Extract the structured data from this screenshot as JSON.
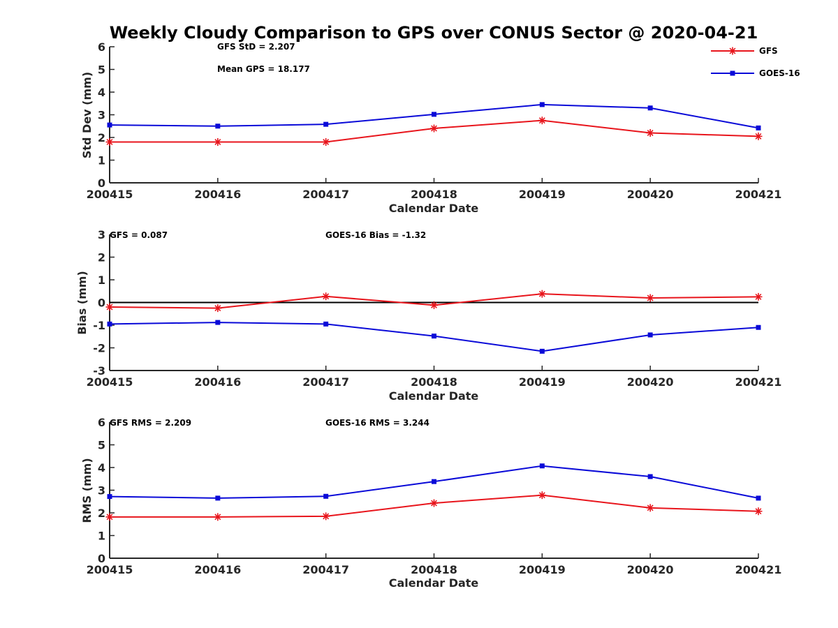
{
  "figure": {
    "title": "Weekly Cloudy Comparison to GPS over CONUS Sector @ 2020-04-21"
  },
  "legend": {
    "position": "top-right",
    "entries": [
      {
        "name": "GFS",
        "color": "#e8151c",
        "marker": "asterisk"
      },
      {
        "name": "GOES-16",
        "color": "#0a0ad8",
        "marker": "square"
      }
    ]
  },
  "chart_data": [
    {
      "type": "line",
      "xlabel": "Calendar Date",
      "ylabel": "Std Dev (mm)",
      "ylim": [
        0,
        6
      ],
      "yticks": [
        0,
        1,
        2,
        3,
        4,
        5,
        6
      ],
      "categories": [
        "200415",
        "200416",
        "200417",
        "200418",
        "200419",
        "200420",
        "200421"
      ],
      "series": [
        {
          "name": "GFS",
          "color": "#e8151c",
          "marker": "asterisk",
          "values": [
            1.8,
            1.8,
            1.8,
            2.4,
            2.75,
            2.2,
            2.05
          ]
        },
        {
          "name": "GOES-16",
          "color": "#0a0ad8",
          "marker": "square",
          "values": [
            2.55,
            2.5,
            2.58,
            3.02,
            3.45,
            3.3,
            2.42
          ]
        }
      ],
      "annotations": [
        "GFS StD = 2.207",
        "Mean GPS = 18.177"
      ],
      "zero_line": false
    },
    {
      "type": "line",
      "xlabel": "Calendar Date",
      "ylabel": "Bias (mm)",
      "ylim": [
        -3,
        3
      ],
      "yticks": [
        -3,
        -2,
        -1,
        0,
        1,
        2,
        3
      ],
      "categories": [
        "200415",
        "200416",
        "200417",
        "200418",
        "200419",
        "200420",
        "200421"
      ],
      "series": [
        {
          "name": "GFS",
          "color": "#e8151c",
          "marker": "asterisk",
          "values": [
            -0.2,
            -0.25,
            0.27,
            -0.12,
            0.38,
            0.2,
            0.25
          ]
        },
        {
          "name": "GOES-16",
          "color": "#0a0ad8",
          "marker": "square",
          "values": [
            -0.95,
            -0.88,
            -0.95,
            -1.48,
            -2.15,
            -1.43,
            -1.1
          ]
        }
      ],
      "annotations": [
        "GFS = 0.087",
        "GOES-16 Bias  = -1.32"
      ],
      "zero_line": true
    },
    {
      "type": "line",
      "xlabel": "Calendar Date",
      "ylabel": "RMS (mm)",
      "ylim": [
        0,
        6
      ],
      "yticks": [
        0,
        1,
        2,
        3,
        4,
        5,
        6
      ],
      "categories": [
        "200415",
        "200416",
        "200417",
        "200418",
        "200419",
        "200420",
        "200421"
      ],
      "series": [
        {
          "name": "GFS",
          "color": "#e8151c",
          "marker": "asterisk",
          "values": [
            1.82,
            1.82,
            1.85,
            2.43,
            2.78,
            2.22,
            2.07
          ]
        },
        {
          "name": "GOES-16",
          "color": "#0a0ad8",
          "marker": "square",
          "values": [
            2.72,
            2.65,
            2.73,
            3.38,
            4.07,
            3.6,
            2.65
          ]
        }
      ],
      "annotations": [
        "GFS RMS = 2.209",
        "GOES-16 RMS = 3.244"
      ],
      "zero_line": false
    }
  ]
}
